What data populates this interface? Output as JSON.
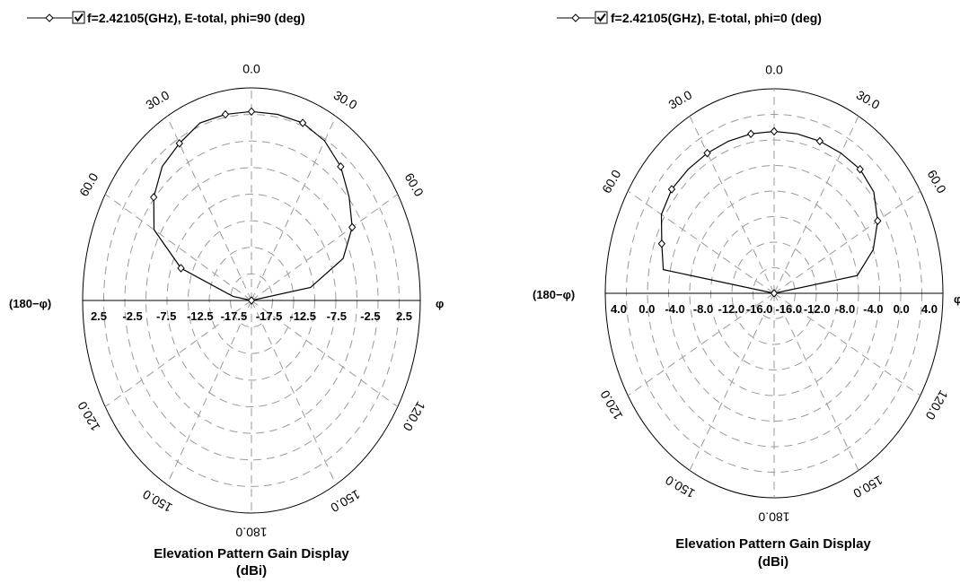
{
  "chart_data": [
    {
      "type": "polar",
      "legend": {
        "label": "f=2.42105(GHz), E-total, phi=90 (deg)",
        "checked": true,
        "placement": "top-left"
      },
      "caption_line1": "Elevation Pattern Gain Display",
      "caption_line2": "(dBi)",
      "left_side_label": "(180−φ)",
      "right_side_label": "φ",
      "angle_labels": [
        {
          "deg": 0,
          "text": "0.0"
        },
        {
          "deg": -30,
          "text": "30.0"
        },
        {
          "deg": 30,
          "text": "30.0"
        },
        {
          "deg": -60,
          "text": "60.0"
        },
        {
          "deg": 60,
          "text": "60.0"
        },
        {
          "deg": -120,
          "text": "120.0"
        },
        {
          "deg": 120,
          "text": "120.0"
        },
        {
          "deg": -150,
          "text": "150.0"
        },
        {
          "deg": 150,
          "text": "150.0"
        },
        {
          "deg": 180,
          "text": "180.0"
        }
      ],
      "radial_ticks_left": [
        "2.5",
        "-2.5",
        "-7.5",
        "-12.5",
        "-17.5"
      ],
      "radial_ticks_right": [
        "-17.5",
        "-12.5",
        "-7.5",
        "-2.5",
        "2.5"
      ],
      "r_range": [
        -20,
        2.5
      ],
      "grid": true,
      "series": [
        {
          "name": "f=2.42105(GHz), E-total, phi=90 (deg)",
          "theta_deg": [
            -90,
            -80,
            -70,
            -60,
            -50,
            -40,
            -30,
            -20,
            -10,
            0,
            10,
            20,
            30,
            40,
            50,
            60,
            70,
            80,
            90
          ],
          "gain_dbi": [
            -20.0,
            -17.5,
            -10.0,
            -5.0,
            -3.0,
            -1.5,
            -0.8,
            0.0,
            0.0,
            0.0,
            0.0,
            0.0,
            -0.5,
            -1.5,
            -3.0,
            -4.5,
            -7.0,
            -12.0,
            -20.0
          ],
          "marker_theta_deg": [
            -70,
            -50,
            -30,
            -10,
            20,
            40,
            60,
            90
          ]
        }
      ]
    },
    {
      "type": "polar",
      "legend": {
        "label": "f=2.42105(GHz), E-total, phi=0 (deg)",
        "checked": true,
        "placement": "top-left"
      },
      "caption_line1": "Elevation Pattern Gain Display",
      "caption_line2": "(dBi)",
      "left_side_label": "(180−φ)",
      "right_side_label": "φ",
      "angle_labels": [
        {
          "deg": 0,
          "text": "0.0"
        },
        {
          "deg": -30,
          "text": "30.0"
        },
        {
          "deg": 30,
          "text": "30.0"
        },
        {
          "deg": -60,
          "text": "60.0"
        },
        {
          "deg": 60,
          "text": "60.0"
        },
        {
          "deg": -120,
          "text": "120.0"
        },
        {
          "deg": 120,
          "text": "120.0"
        },
        {
          "deg": -150,
          "text": "150.0"
        },
        {
          "deg": 150,
          "text": "150.0"
        },
        {
          "deg": 180,
          "text": "180.0"
        }
      ],
      "radial_ticks_left": [
        "4.0",
        "0.0",
        "-4.0",
        "-8.0",
        "-12.0",
        "-16.0"
      ],
      "radial_ticks_right": [
        "-16.0",
        "-12.0",
        "-8.0",
        "-4.0",
        "0.0",
        "4.0"
      ],
      "r_range": [
        -20,
        4
      ],
      "grid": true,
      "series": [
        {
          "name": "f=2.42105(GHz), E-total, phi=0 (deg)",
          "theta_deg": [
            -90,
            -80,
            -70,
            -60,
            -50,
            -40,
            -30,
            -20,
            -10,
            0,
            10,
            20,
            30,
            40,
            50,
            60,
            70,
            80,
            90
          ],
          "gain_dbi": [
            -20.0,
            -4.0,
            -3.0,
            -1.5,
            -1.0,
            -1.0,
            -1.0,
            -1.0,
            -1.0,
            -1.0,
            -1.0,
            -1.0,
            -1.0,
            -1.0,
            -1.5,
            -3.0,
            -5.0,
            -8.0,
            -20.0
          ],
          "marker_theta_deg": [
            -70,
            -50,
            -30,
            -10,
            20,
            40,
            60,
            90
          ]
        }
      ]
    }
  ]
}
